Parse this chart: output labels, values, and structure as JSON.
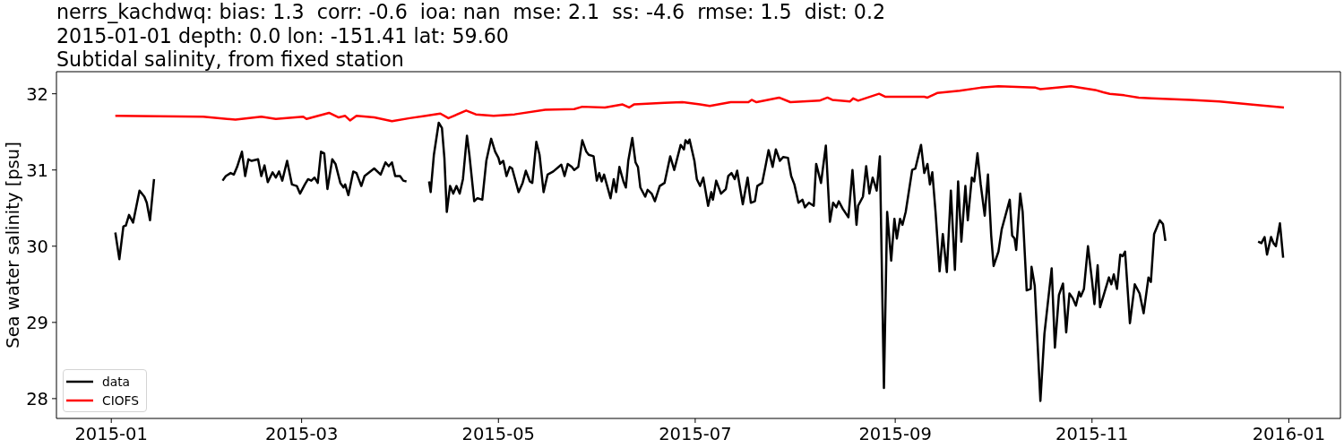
{
  "chart_data": {
    "type": "line",
    "title": "nerrs_kachdwq: bias: 1.3  corr: -0.6  ioa: nan  mse: 2.1  ss: -4.6  rmse: 1.5  dist: 0.2\n2015-01-01 depth: 0.0 lon: -151.41 lat: 59.60\nSubtidal salinity, from fixed station",
    "ylabel": "Sea water salinity [psu]",
    "series": [
      {
        "name": "data",
        "color": "#000000",
        "x": [
          "2015-01-02T06:00",
          "2015-01-03T12:00",
          "2015-01-04T18:00",
          "2015-01-05T12:00",
          "2015-01-06T12:00",
          "2015-01-07T18:00",
          "2015-01-09T18:00",
          "2015-01-11T06:00",
          "2015-01-12",
          "2015-01-13",
          "2015-01-14T06:00",
          "2015-01-25",
          "2015-02-04T12:00",
          "2015-02-05T12:00",
          "2015-02-07",
          "2015-02-08",
          "2015-02-09",
          "2015-02-10T12:00",
          "2015-02-11T12:00",
          "2015-02-12T12:00",
          "2015-02-13T12:00",
          "2015-02-15T12:00",
          "2015-02-16T12:00",
          "2015-02-17T12:00",
          "2015-02-18T12:00",
          "2015-02-20",
          "2015-02-21",
          "2015-02-22",
          "2015-02-23",
          "2015-02-24T12:00",
          "2015-02-26",
          "2015-02-27T12:00",
          "2015-02-28T12:00",
          "2015-03-02",
          "2015-03-03",
          "2015-03-04",
          "2015-03-05",
          "2015-03-06",
          "2015-03-07",
          "2015-03-08",
          "2015-03-09",
          "2015-03-10T12:00",
          "2015-03-11T12:00",
          "2015-03-13",
          "2015-03-14",
          "2015-03-14T12:00",
          "2015-03-15T12:00",
          "2015-03-17",
          "2015-03-18",
          "2015-03-19T12:00",
          "2015-03-20T12:00",
          "2015-03-23T12:00",
          "2015-03-25T12:00",
          "2015-03-27",
          "2015-03-28",
          "2015-03-29",
          "2015-03-30",
          "2015-03-31T12:00",
          "2015-04-01T12:00",
          "2015-04-02T12:00",
          "2015-04-05",
          "2015-04-09T12:00",
          "2015-04-10",
          "2015-04-11",
          "2015-04-12T12:00",
          "2015-04-13T12:00",
          "2015-04-14T06:00",
          "2015-04-15",
          "2015-04-16",
          "2015-04-17",
          "2015-04-18",
          "2015-04-19",
          "2015-04-20",
          "2015-04-21T06:00",
          "2015-04-22",
          "2015-04-23T12:00",
          "2015-04-24T12:00",
          "2015-04-26",
          "2015-04-27T06:00",
          "2015-04-28T18:00",
          "2015-04-30",
          "2015-05-01",
          "2015-05-01T12:00",
          "2015-05-02T12:00",
          "2015-05-03T12:00",
          "2015-05-04T12:00",
          "2015-05-05T06:00",
          "2015-05-07T06:00",
          "2015-05-08T12:00",
          "2015-05-09T12:00",
          "2015-05-10T18:00",
          "2015-05-11T12:00",
          "2015-05-12T18:00",
          "2015-05-13T18:00",
          "2015-05-15",
          "2015-05-16T06:00",
          "2015-05-18",
          "2015-05-20T12:00",
          "2015-05-21T12:00",
          "2015-05-22T12:00",
          "2015-05-23T18:00",
          "2015-05-24T12:00",
          "2015-05-25T18:00",
          "2015-05-27",
          "2015-05-28T06:00",
          "2015-05-29",
          "2015-05-30T12:00",
          "2015-05-31T12:00",
          "2015-06-01T06:00",
          "2015-06-02",
          "2015-06-02T18:00",
          "2015-06-04T18:00",
          "2015-06-05T18:00",
          "2015-06-06T12:00",
          "2015-06-07T12:00",
          "2015-06-08T18:00",
          "2015-06-09T12:00",
          "2015-06-10T06:00",
          "2015-06-11T12:00",
          "2015-06-12T12:00",
          "2015-06-13T06:00",
          "2015-06-14",
          "2015-06-15T12:00",
          "2015-06-16T06:00",
          "2015-06-17T12:00",
          "2015-06-18T12:00",
          "2015-06-20",
          "2015-06-21T12:00",
          "2015-06-23T06:00",
          "2015-06-24T12:00",
          "2015-06-26T12:00",
          "2015-06-27T12:00",
          "2015-06-28",
          "2015-06-28T18:00",
          "2015-06-29T06:00",
          "2015-06-30T18:00",
          "2015-07-01T12:00",
          "2015-07-02T12:00",
          "2015-07-03T12:00",
          "2015-07-05",
          "2015-07-06",
          "2015-07-06T12:00",
          "2015-07-07T12:00",
          "2015-07-09",
          "2015-07-10T12:00",
          "2015-07-11T06:00",
          "2015-07-12T06:00",
          "2015-07-13T06:00",
          "2015-07-14",
          "2015-07-15T18:00",
          "2015-07-17T06:00",
          "2015-07-18T06:00",
          "2015-07-19T12:00",
          "2015-07-20T06:00",
          "2015-07-21T18:00",
          "2015-07-22T18:00",
          "2015-07-23T18:00",
          "2015-07-25",
          "2015-07-26",
          "2015-07-27T06:00",
          "2015-07-28T06:00",
          "2015-07-29T18:00",
          "2015-07-30T18:00",
          "2015-07-31T18:00",
          "2015-08-02",
          "2015-08-03T06:00",
          "2015-08-04",
          "2015-08-05T06:00",
          "2015-08-06T18:00",
          "2015-08-07T12:00",
          "2015-08-09",
          "2015-08-10T12:00",
          "2015-08-11T18:00",
          "2015-08-12T18:00",
          "2015-08-13T18:00",
          "2015-08-14T12:00",
          "2015-08-15T18:00",
          "2015-08-17T12:00",
          "2015-08-18T18:00",
          "2015-08-20",
          "2015-08-20T12:00",
          "2015-08-22",
          "2015-08-23",
          "2015-08-24",
          "2015-08-25",
          "2015-08-26T06:00",
          "2015-08-27T06:00",
          "2015-08-28T12:00",
          "2015-08-29T12:00",
          "2015-08-30T18:00",
          "2015-08-31T18:00",
          "2015-09-01T12:00",
          "2015-09-02T12:00",
          "2015-09-03T06:00",
          "2015-09-04T06:00",
          "2015-09-06T06:00",
          "2015-09-07T06:00",
          "2015-09-09",
          "2015-09-10",
          "2015-09-11",
          "2015-09-11T18:00",
          "2015-09-12T12:00",
          "2015-09-13T12:00",
          "2015-09-14T18:00",
          "2015-09-15T18:00",
          "2015-09-17",
          "2015-09-18T06:00",
          "2015-09-19T12:00",
          "2015-09-20T12:00",
          "2015-09-21T12:00",
          "2015-09-22T18:00",
          "2015-09-23T12:00",
          "2015-09-24T18:00",
          "2015-09-25T12:00",
          "2015-09-26T12:00",
          "2015-09-27T12:00",
          "2015-09-28T18:00",
          "2015-09-29T18:00",
          "2015-09-30T18:00",
          "2015-10-01T12:00",
          "2015-10-03",
          "2015-10-04",
          "2015-10-06T12:00",
          "2015-10-07T06:00",
          "2015-10-08",
          "2015-10-08T12:00",
          "2015-10-09T18:00",
          "2015-10-10T12:00",
          "2015-10-11T18:00",
          "2015-10-13",
          "2015-10-13T06:00",
          "2015-10-14T06:00",
          "2015-10-16",
          "2015-10-17T06:00",
          "2015-10-19T12:00",
          "2015-10-20T12:00",
          "2015-10-21T18:00",
          "2015-10-23",
          "2015-10-24",
          "2015-10-25",
          "2015-10-26",
          "2015-10-27",
          "2015-10-28",
          "2015-10-28T12:00",
          "2015-10-29T12:00",
          "2015-10-30T18:00",
          "2015-11-01",
          "2015-11-01T18:00",
          "2015-11-02T18:00",
          "2015-11-03T12:00",
          "2015-11-04T12:00",
          "2015-11-06T06:00",
          "2015-11-07",
          "2015-11-07T18:00",
          "2015-11-08T18:00",
          "2015-11-09T18:00",
          "2015-11-10T12:00",
          "2015-11-11T06:00",
          "2015-11-12T18:00",
          "2015-11-14T06:00",
          "2015-11-15T18:00",
          "2015-11-17",
          "2015-11-18T12:00",
          "2015-11-19T06:00",
          "2015-11-20T06:00",
          "2015-11-22",
          "2015-11-23",
          "2015-11-23T18:00",
          "2015-12-10",
          "2015-12-22T12:00",
          "2015-12-23T12:00",
          "2015-12-24T12:00",
          "2015-12-25T06:00",
          "2015-12-26T12:00",
          "2015-12-27T06:00",
          "2015-12-28",
          "2015-12-29T06:00",
          "2015-12-30T06:00"
        ],
        "values": [
          30.18,
          29.83,
          30.26,
          30.27,
          30.41,
          30.31,
          30.73,
          30.65,
          30.57,
          30.34,
          30.88,
          null,
          30.86,
          30.92,
          30.96,
          30.94,
          31.04,
          31.24,
          30.92,
          31.14,
          31.12,
          31.14,
          30.92,
          31.06,
          30.84,
          30.97,
          30.9,
          30.98,
          30.86,
          31.12,
          30.81,
          30.79,
          30.69,
          30.81,
          30.88,
          30.86,
          30.9,
          30.83,
          31.24,
          31.22,
          30.75,
          31.14,
          31.08,
          30.83,
          30.77,
          30.81,
          30.67,
          30.98,
          30.96,
          30.79,
          30.92,
          31.02,
          30.94,
          31.1,
          31.05,
          31.1,
          30.92,
          30.92,
          30.86,
          30.85,
          null,
          30.85,
          30.71,
          31.2,
          31.62,
          31.55,
          31.16,
          30.45,
          30.79,
          30.69,
          30.79,
          30.69,
          30.88,
          31.45,
          31.2,
          30.59,
          30.63,
          30.61,
          31.12,
          31.41,
          31.24,
          31.16,
          31.08,
          31.12,
          30.92,
          31.04,
          31.02,
          30.71,
          30.83,
          30.99,
          30.85,
          30.83,
          31.37,
          31.2,
          30.71,
          30.94,
          30.98,
          31.07,
          30.92,
          31.08,
          31.04,
          31.0,
          31.04,
          31.39,
          31.24,
          31.2,
          31.18,
          30.86,
          30.96,
          30.85,
          30.94,
          30.63,
          30.88,
          30.71,
          31.04,
          30.85,
          30.77,
          31.12,
          31.42,
          31.1,
          31.04,
          30.77,
          30.65,
          30.74,
          30.69,
          30.59,
          30.79,
          30.83,
          31.18,
          31.0,
          31.33,
          31.27,
          31.39,
          31.35,
          31.4,
          31.12,
          30.88,
          30.79,
          30.9,
          30.53,
          30.71,
          30.61,
          30.86,
          30.69,
          30.75,
          30.92,
          30.96,
          30.88,
          30.99,
          30.55,
          30.9,
          30.57,
          30.59,
          30.79,
          30.83,
          31.04,
          31.26,
          31.04,
          31.27,
          31.12,
          31.17,
          31.16,
          30.92,
          30.81,
          30.57,
          30.61,
          30.51,
          30.57,
          30.53,
          31.08,
          30.83,
          31.32,
          30.32,
          30.57,
          30.51,
          30.59,
          30.49,
          30.38,
          31.0,
          30.28,
          30.53,
          30.65,
          31.05,
          30.69,
          30.9,
          30.73,
          31.18,
          28.14,
          30.45,
          29.81,
          30.36,
          30.1,
          30.36,
          30.28,
          30.45,
          31.0,
          31.02,
          31.33,
          30.96,
          31.08,
          30.81,
          30.97,
          30.45,
          29.67,
          30.16,
          29.66,
          30.73,
          29.69,
          30.85,
          30.06,
          30.79,
          30.34,
          30.9,
          30.85,
          31.22,
          30.81,
          30.4,
          30.94,
          30.14,
          29.74,
          29.93,
          30.22,
          30.61,
          30.14,
          30.1,
          29.95,
          30.69,
          30.45,
          29.42,
          29.44,
          29.73,
          29.48,
          27.97,
          28.85,
          29.71,
          28.67,
          29.36,
          29.51,
          28.87,
          29.38,
          29.32,
          29.22,
          29.4,
          29.34,
          29.44,
          30.0,
          29.55,
          29.24,
          29.75,
          29.2,
          29.34,
          29.59,
          29.5,
          29.63,
          29.44,
          29.89,
          29.87,
          29.93,
          28.99,
          29.5,
          29.38,
          29.12,
          29.59,
          29.53,
          30.16,
          30.34,
          30.29,
          30.07,
          null,
          30.06,
          30.04,
          30.12,
          29.89,
          30.12,
          30.04,
          30.0,
          30.3,
          29.85
        ]
      },
      {
        "name": "CIOFS",
        "color": "#ff0000",
        "x": [
          "2015-01-02T06:00",
          "2015-01-29T12:00",
          "2015-02-08T12:00",
          "2015-02-16T12:00",
          "2015-02-21",
          "2015-03-01T12:00",
          "2015-03-02T12:00",
          "2015-03-09T12:00",
          "2015-03-12T12:00",
          "2015-03-14T12:00",
          "2015-03-16",
          "2015-03-18",
          "2015-03-23T12:00",
          "2015-03-29",
          "2015-04-03T12:00",
          "2015-04-08T12:00",
          "2015-04-13",
          "2015-04-15T12:00",
          "2015-04-21",
          "2015-04-24",
          "2015-04-29T12:00",
          "2015-05-06",
          "2015-05-15T12:00",
          "2015-05-24T12:00",
          "2015-05-27",
          "2015-06-03",
          "2015-06-08T12:00",
          "2015-06-10T12:00",
          "2015-06-12",
          "2015-06-21T12:00",
          "2015-06-27",
          "2015-07-02T12:00",
          "2015-07-05T12:00",
          "2015-07-12",
          "2015-07-17T12:00",
          "2015-07-18T12:00",
          "2015-07-20",
          "2015-07-27",
          "2015-07-30T12:00",
          "2015-08-08T12:00",
          "2015-08-11",
          "2015-08-12T12:00",
          "2015-08-18",
          "2015-08-19",
          "2015-08-20T12:00",
          "2015-08-27",
          "2015-08-29",
          "2015-09-10",
          "2015-09-11",
          "2015-09-14",
          "2015-09-21",
          "2015-09-27T12:00",
          "2015-10-03",
          "2015-10-14T12:00",
          "2015-10-16",
          "2015-10-25T12:00",
          "2015-11-02",
          "2015-11-04T12:00",
          "2015-11-06T12:00",
          "2015-11-11",
          "2015-11-15T12:00",
          "2015-11-19T12:00",
          "2015-12-01T12:00",
          "2015-12-10T12:00",
          "2015-12-20",
          "2015-12-30T12:00"
        ],
        "values": [
          31.71,
          31.7,
          31.66,
          31.7,
          31.67,
          31.7,
          31.67,
          31.75,
          31.69,
          31.71,
          31.65,
          31.71,
          31.69,
          31.64,
          31.68,
          31.71,
          31.74,
          31.68,
          31.78,
          31.73,
          31.71,
          31.73,
          31.79,
          31.8,
          31.83,
          31.82,
          31.86,
          31.82,
          31.86,
          31.88,
          31.89,
          31.86,
          31.84,
          31.89,
          31.89,
          31.92,
          31.89,
          31.95,
          31.89,
          31.91,
          31.95,
          31.92,
          31.9,
          31.94,
          31.91,
          32.0,
          31.96,
          31.96,
          31.95,
          32.01,
          32.04,
          32.08,
          32.1,
          32.08,
          32.06,
          32.1,
          32.05,
          32.02,
          32.0,
          31.98,
          31.95,
          31.94,
          31.92,
          31.9,
          31.86,
          31.82
        ]
      }
    ],
    "xlim": [
      "2014-12-15",
      "2016-01-17"
    ],
    "xticks": [
      "2015-01",
      "2015-03",
      "2015-05",
      "2015-07",
      "2015-09",
      "2015-11",
      "2016-01"
    ],
    "ylim": [
      27.74,
      32.29
    ],
    "yticks": [
      28,
      29,
      30,
      31,
      32
    ],
    "legend": "bottom left"
  }
}
